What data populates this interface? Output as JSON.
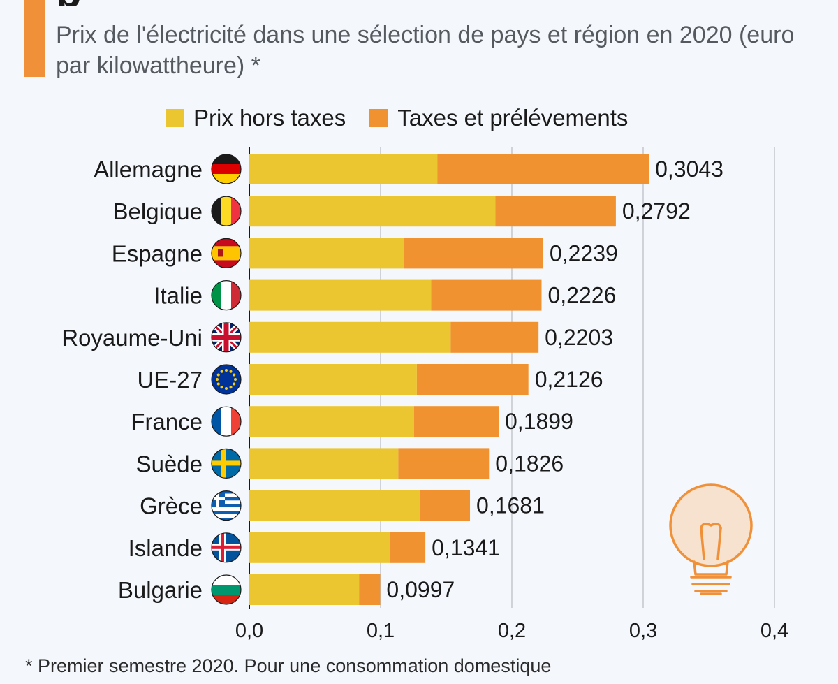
{
  "header": {
    "subtitle": "Prix de l'électricité dans une sélection de pays et région en 2020 (euro par kilowattheure) *",
    "accent_color": "#f0913a"
  },
  "legend": {
    "items": [
      {
        "label": "Prix hors taxes",
        "color": "#ecc631"
      },
      {
        "label": "Taxes et prélévements",
        "color": "#f0922f"
      }
    ]
  },
  "chart_data": {
    "type": "bar",
    "orientation": "horizontal",
    "stacked": true,
    "categories": [
      "Allemagne",
      "Belgique",
      "Espagne",
      "Italie",
      "Royaume-Uni",
      "UE-27",
      "France",
      "Suède",
      "Grèce",
      "Islande",
      "Bulgarie"
    ],
    "flags": [
      "germany-flag",
      "belgium-flag",
      "spain-flag",
      "italy-flag",
      "uk-flag",
      "eu-flag",
      "france-flag",
      "sweden-flag",
      "greece-flag",
      "iceland-flag",
      "bulgaria-flag"
    ],
    "series": [
      {
        "name": "Prix hors taxes",
        "color": "#ecc631",
        "values": [
          0.1432,
          0.1875,
          0.1178,
          0.1385,
          0.1534,
          0.1276,
          0.1254,
          0.1135,
          0.1298,
          0.1068,
          0.0836
        ]
      },
      {
        "name": "Taxes et prélévements",
        "color": "#f0922f",
        "values": [
          0.1611,
          0.0917,
          0.1061,
          0.0841,
          0.0669,
          0.085,
          0.0645,
          0.0691,
          0.0383,
          0.0273,
          0.0161
        ]
      }
    ],
    "totals": [
      0.3043,
      0.2792,
      0.2239,
      0.2226,
      0.2203,
      0.2126,
      0.1899,
      0.1826,
      0.1681,
      0.1341,
      0.0997
    ],
    "total_labels": [
      "0,3043",
      "0,2792",
      "0,2239",
      "0,2226",
      "0,2203",
      "0,2126",
      "0,1899",
      "0,1826",
      "0,1681",
      "0,1341",
      "0,0997"
    ],
    "x_ticks": [
      0,
      0.1,
      0.2,
      0.3,
      0.4
    ],
    "x_tick_labels": [
      "0,0",
      "0,1",
      "0,2",
      "0,3",
      "0,4"
    ],
    "xlim": [
      0,
      0.4
    ],
    "grid": "vertical",
    "legend_position": "top"
  },
  "decoration": {
    "icon": "lightbulb-icon",
    "color": "#f0913a"
  },
  "footnote": "* Premier semestre 2020. Pour une consommation domestique"
}
